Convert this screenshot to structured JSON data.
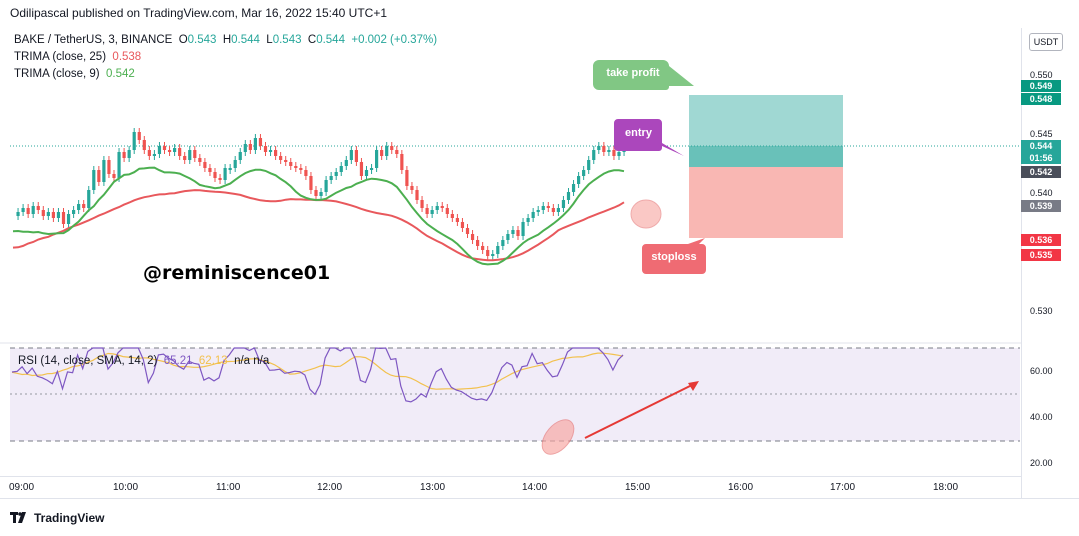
{
  "header": {
    "publish_text": "Odilipascal published on TradingView.com, Mar 16, 2022 15:40 UTC+1"
  },
  "legend": {
    "symbol": "BAKE / TetherUS, 3, BINANCE",
    "open_label": "O",
    "open": "0.543",
    "high_label": "H",
    "high": "0.544",
    "low_label": "L",
    "low": "0.543",
    "close_label": "C",
    "close": "0.544",
    "change": "+0.002 (+0.37%)",
    "trima25_label": "TRIMA (close, 25)",
    "trima25_value": "0.538",
    "trima9_label": "TRIMA (close, 9)",
    "trima9_value": "0.542"
  },
  "currency_button": "USDT",
  "price_axis": {
    "ticks": [
      "0.550",
      "0.545",
      "0.540",
      "0.530"
    ],
    "tags": [
      {
        "text": "0.549",
        "color": "#089981"
      },
      {
        "text": "0.548",
        "color": "#089981"
      },
      {
        "text": "0.544",
        "color": "#26a69a"
      },
      {
        "text": "01:56",
        "color": "#26a69a"
      },
      {
        "text": "0.542",
        "color": "#4a4e5a"
      },
      {
        "text": "0.539",
        "color": "#787b86"
      },
      {
        "text": "0.536",
        "color": "#f23645"
      },
      {
        "text": "0.535",
        "color": "#f23645"
      }
    ]
  },
  "rsi": {
    "legend_name": "RSI (14, close, SMA, 14, 2)",
    "rsi_value": "65.21",
    "sma_value": "62.13",
    "extra": "n/a  n/a",
    "ticks": [
      "60.00",
      "40.00",
      "20.00"
    ]
  },
  "time_axis": {
    "ticks": [
      "09:00",
      "10:00",
      "11:00",
      "12:00",
      "13:00",
      "14:00",
      "15:00",
      "16:00",
      "17:00",
      "18:00"
    ]
  },
  "annotations": {
    "take_profit": "take profit",
    "entry": "entry",
    "stoploss": "stoploss",
    "watermark": "@reminiscence01"
  },
  "footer": {
    "logo_text": "TradingView"
  },
  "colors": {
    "up": "#26a69a",
    "down": "#ef5350",
    "trima25": "#e8585c",
    "trima9": "#4caf50",
    "rsi": "#7e57c2",
    "rsi_sma": "#f2c14e"
  }
}
